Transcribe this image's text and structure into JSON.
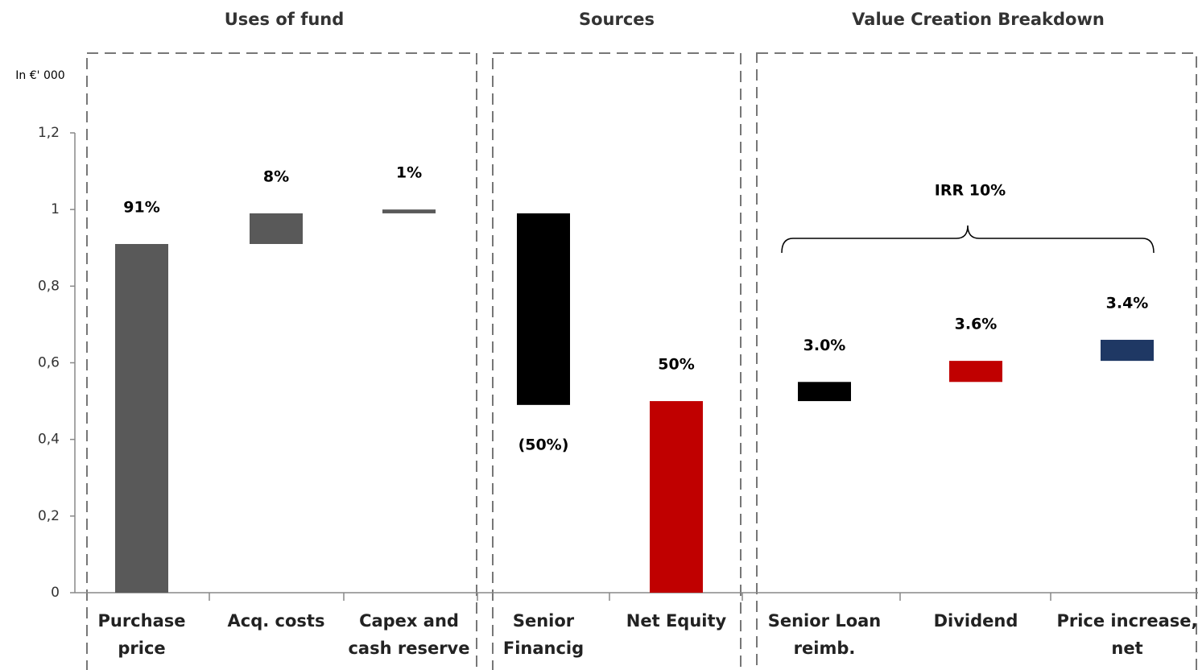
{
  "chart_data": {
    "type": "range_bar",
    "y_axis_label": "In €' 000",
    "ylim": [
      0,
      1.2
    ],
    "yticks": [
      0,
      {
        "value": 0.2,
        "label": "0,2"
      },
      {
        "value": 0.4,
        "label": "0,4"
      },
      {
        "value": 0.6,
        "label": "0,6"
      },
      {
        "value": 0.8,
        "label": "0,8"
      },
      1,
      {
        "value": 1.2,
        "label": "1,2"
      }
    ],
    "panels": [
      {
        "title": "Uses of fund",
        "categories": [
          [
            "Purchase",
            "price"
          ],
          [
            "Acq. costs"
          ],
          [
            "Capex and",
            "cash reserve"
          ]
        ],
        "ranges": [
          [
            0,
            0.91
          ],
          [
            0.91,
            0.99
          ],
          [
            0.99,
            1.0
          ]
        ],
        "labels": [
          "91%",
          "8%",
          "1%"
        ],
        "colors": [
          "#595959",
          "#595959",
          "#595959"
        ]
      },
      {
        "title": "Sources",
        "categories": [
          [
            "Senior",
            "Financig"
          ],
          [
            "Net Equity"
          ]
        ],
        "ranges": [
          [
            0.99,
            0.49
          ],
          [
            0,
            0.5
          ]
        ],
        "labels": [
          "(50%)",
          "50%"
        ],
        "colors": [
          "#000000",
          "#c00000"
        ]
      },
      {
        "title": "Value Creation Breakdown",
        "categories": [
          [
            "Senior Loan",
            "reimb."
          ],
          [
            "Dividend"
          ],
          [
            "Price increase,",
            "net"
          ]
        ],
        "ranges": [
          [
            0.5,
            0.55
          ],
          [
            0.55,
            0.605
          ],
          [
            0.605,
            0.66
          ]
        ],
        "labels": [
          "3.0%",
          "3.6%",
          "3.4%"
        ],
        "colors": [
          "#000000",
          "#c00000",
          "#1f3864"
        ],
        "annotation": "IRR 10%"
      }
    ]
  }
}
